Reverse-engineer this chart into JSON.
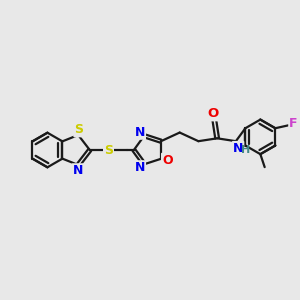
{
  "bg_color": "#e8e8e8",
  "bond_color": "#1a1a1a",
  "line_width": 1.6,
  "atom_colors": {
    "S": "#cccc00",
    "N": "#0000ee",
    "O": "#ee0000",
    "F": "#cc44cc",
    "H": "#448888",
    "C": "#1a1a1a"
  },
  "figsize": [
    3.0,
    3.0
  ],
  "dpi": 100
}
